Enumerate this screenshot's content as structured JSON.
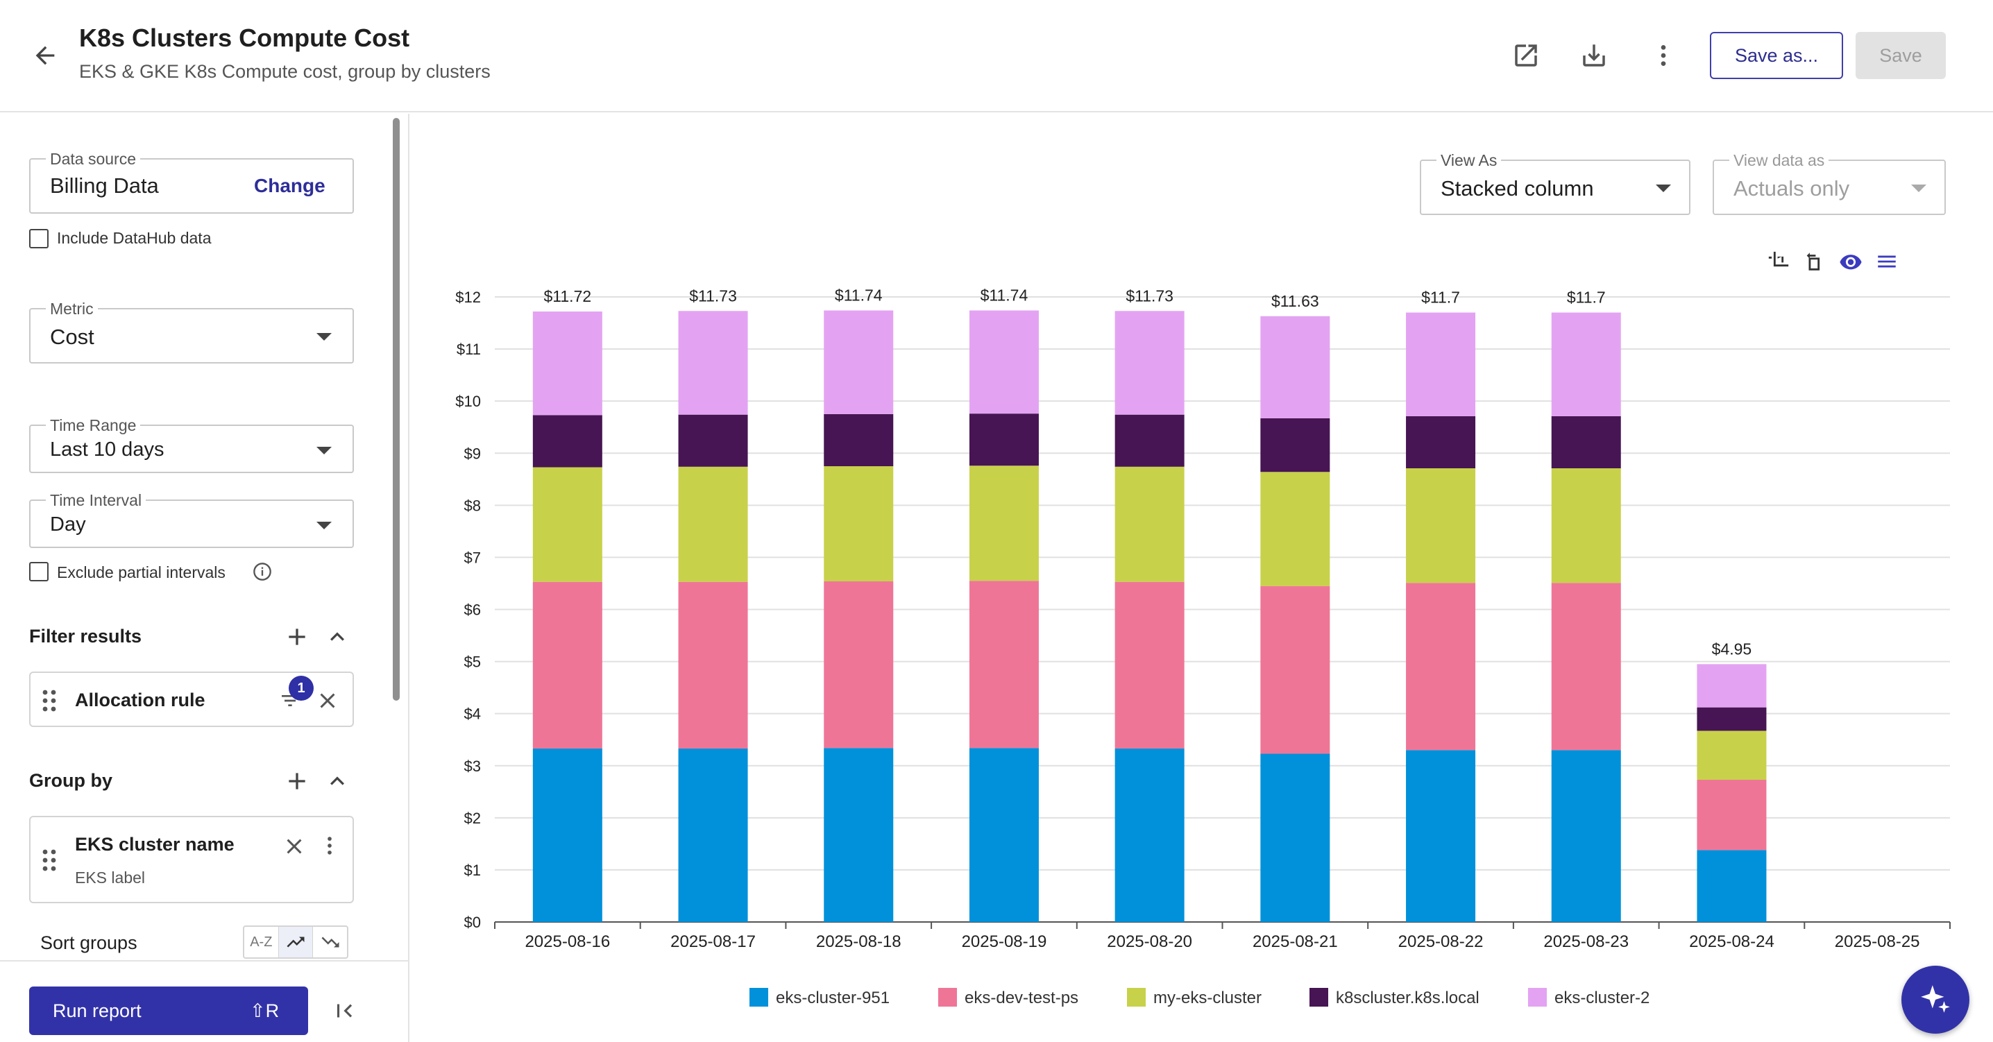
{
  "header": {
    "title": "K8s Clusters Compute Cost",
    "subtitle": "EKS & GKE K8s Compute cost, group by clusters",
    "save_as_label": "Save as...",
    "save_label": "Save"
  },
  "sidebar": {
    "data_source": {
      "label": "Data source",
      "value": "Billing Data",
      "change_label": "Change"
    },
    "include_datahub_label": "Include DataHub data",
    "metric": {
      "label": "Metric",
      "value": "Cost"
    },
    "time_range": {
      "label": "Time Range",
      "value": "Last 10 days"
    },
    "time_interval": {
      "label": "Time Interval",
      "value": "Day"
    },
    "exclude_partial_label": "Exclude partial intervals",
    "filter_results": {
      "title": "Filter results",
      "rule_label": "Allocation rule",
      "badge_count": "1"
    },
    "group_by": {
      "title": "Group by",
      "item_label": "EKS cluster name",
      "item_sub": "EKS label"
    },
    "sort_groups_label": "Sort groups",
    "sort_az_label": "A-Z",
    "run_report": {
      "label": "Run report",
      "shortcut": "⇧R"
    }
  },
  "view": {
    "view_as": {
      "label": "View As",
      "value": "Stacked column"
    },
    "view_data_as": {
      "label": "View data as",
      "value": "Actuals only"
    }
  },
  "colors": {
    "accent": "#3b3bb3",
    "eks-cluster-951": "#0091da",
    "eks-dev-test-ps": "#ef7597",
    "my-eks-cluster": "#c8d14a",
    "k8scluster.k8s.local": "#471553",
    "eks-cluster-2": "#e3a3f2"
  },
  "chart_data": {
    "type": "bar",
    "stacked": true,
    "categories": [
      "2025-08-16",
      "2025-08-17",
      "2025-08-18",
      "2025-08-19",
      "2025-08-20",
      "2025-08-21",
      "2025-08-22",
      "2025-08-23",
      "2025-08-24",
      "2025-08-25"
    ],
    "series": [
      {
        "name": "eks-cluster-951",
        "values": [
          3.33,
          3.33,
          3.34,
          3.34,
          3.33,
          3.23,
          3.3,
          3.3,
          1.38,
          0
        ]
      },
      {
        "name": "eks-dev-test-ps",
        "values": [
          3.2,
          3.2,
          3.2,
          3.21,
          3.2,
          3.22,
          3.21,
          3.21,
          1.35,
          0
        ]
      },
      {
        "name": "my-eks-cluster",
        "values": [
          2.2,
          2.21,
          2.21,
          2.21,
          2.21,
          2.19,
          2.2,
          2.2,
          0.94,
          0
        ]
      },
      {
        "name": "k8scluster.k8s.local",
        "values": [
          1.0,
          1.0,
          1.0,
          1.0,
          1.0,
          1.03,
          1.0,
          1.0,
          0.45,
          0
        ]
      },
      {
        "name": "eks-cluster-2",
        "values": [
          1.99,
          1.99,
          1.99,
          1.98,
          1.99,
          1.96,
          1.99,
          1.99,
          0.83,
          0
        ]
      }
    ],
    "totals": [
      "$11.72",
      "$11.73",
      "$11.74",
      "$11.74",
      "$11.73",
      "$11.63",
      "$11.7",
      "$11.7",
      "$4.95",
      ""
    ],
    "y_ticks": [
      "$0",
      "$1",
      "$2",
      "$3",
      "$4",
      "$5",
      "$6",
      "$7",
      "$8",
      "$9",
      "$10",
      "$11",
      "$12"
    ],
    "ylim": [
      0,
      12
    ],
    "grid": true,
    "legend_position": "bottom"
  }
}
